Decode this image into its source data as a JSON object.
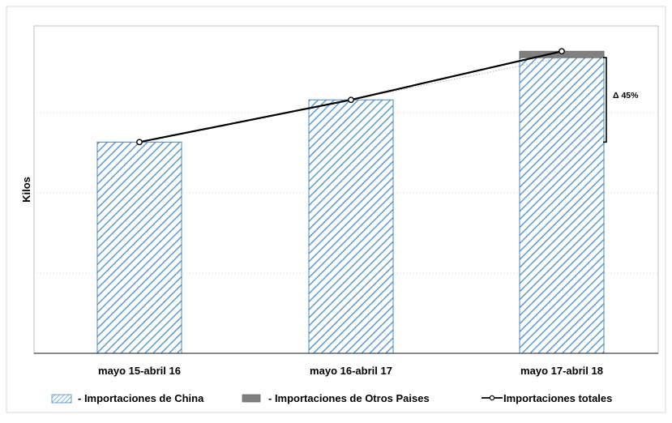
{
  "chart_data": {
    "type": "bar",
    "title": "",
    "ylabel": "Kilos",
    "xlabel": "",
    "categories": [
      "mayo 15-abril 16",
      "mayo 16-abril 17",
      "mayo 17-abril 18"
    ],
    "series": [
      {
        "name": "- Importaciones de China",
        "kind": "bar",
        "pattern": "diagonal-hatch",
        "color": "#5b9bd5",
        "values": [
          100,
          120,
          140
        ]
      },
      {
        "name": "- Importaciones de Otros Paises",
        "kind": "bar-stacked",
        "color": "#808080",
        "values": [
          0,
          0,
          3
        ]
      },
      {
        "name": "Importaciones totales",
        "kind": "line",
        "color": "#000000",
        "values": [
          100,
          120,
          143
        ]
      }
    ],
    "annotation": {
      "text": "Δ 45%",
      "from_category": "mayo 17-abril 18"
    },
    "grid": "dotted horizontal",
    "legend_position": "bottom",
    "ylim": [
      0,
      155
    ],
    "y_ticks_shown": false
  }
}
